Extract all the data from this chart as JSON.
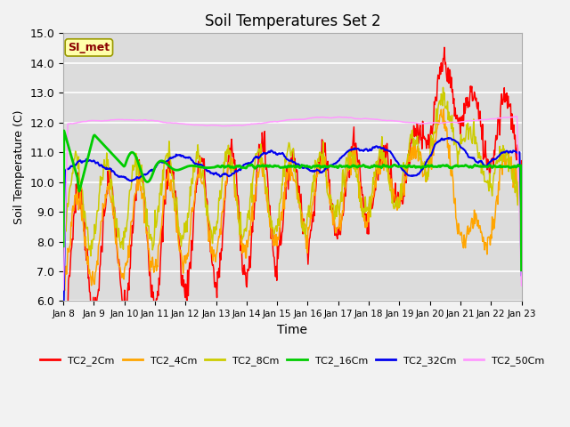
{
  "title": "Soil Temperatures Set 2",
  "xlabel": "Time",
  "ylabel": "Soil Temperature (C)",
  "ylim": [
    6.0,
    15.0
  ],
  "yticks": [
    6.0,
    7.0,
    8.0,
    9.0,
    10.0,
    11.0,
    12.0,
    13.0,
    14.0,
    15.0
  ],
  "xtick_labels": [
    "Jan 8",
    "Jan 9",
    "Jan 10",
    "Jan 11",
    "Jan 12",
    "Jan 13",
    "Jan 14",
    "Jan 15",
    "Jan 16",
    "Jan 17",
    "Jan 18",
    "Jan 19",
    "Jan 20",
    "Jan 21",
    "Jan 22",
    "Jan 23"
  ],
  "annotation_text": "SI_met",
  "annotation_color": "#8B0000",
  "annotation_bg": "#FFFFAA",
  "annotation_border": "#999900",
  "series_colors": {
    "TC2_2Cm": "#FF0000",
    "TC2_4Cm": "#FFA500",
    "TC2_8Cm": "#CCCC00",
    "TC2_16Cm": "#00CC00",
    "TC2_32Cm": "#0000EE",
    "TC2_50Cm": "#FF99FF"
  },
  "bg_color": "#DCDCDC",
  "fig_color": "#F2F2F2",
  "grid_color": "#FFFFFF"
}
